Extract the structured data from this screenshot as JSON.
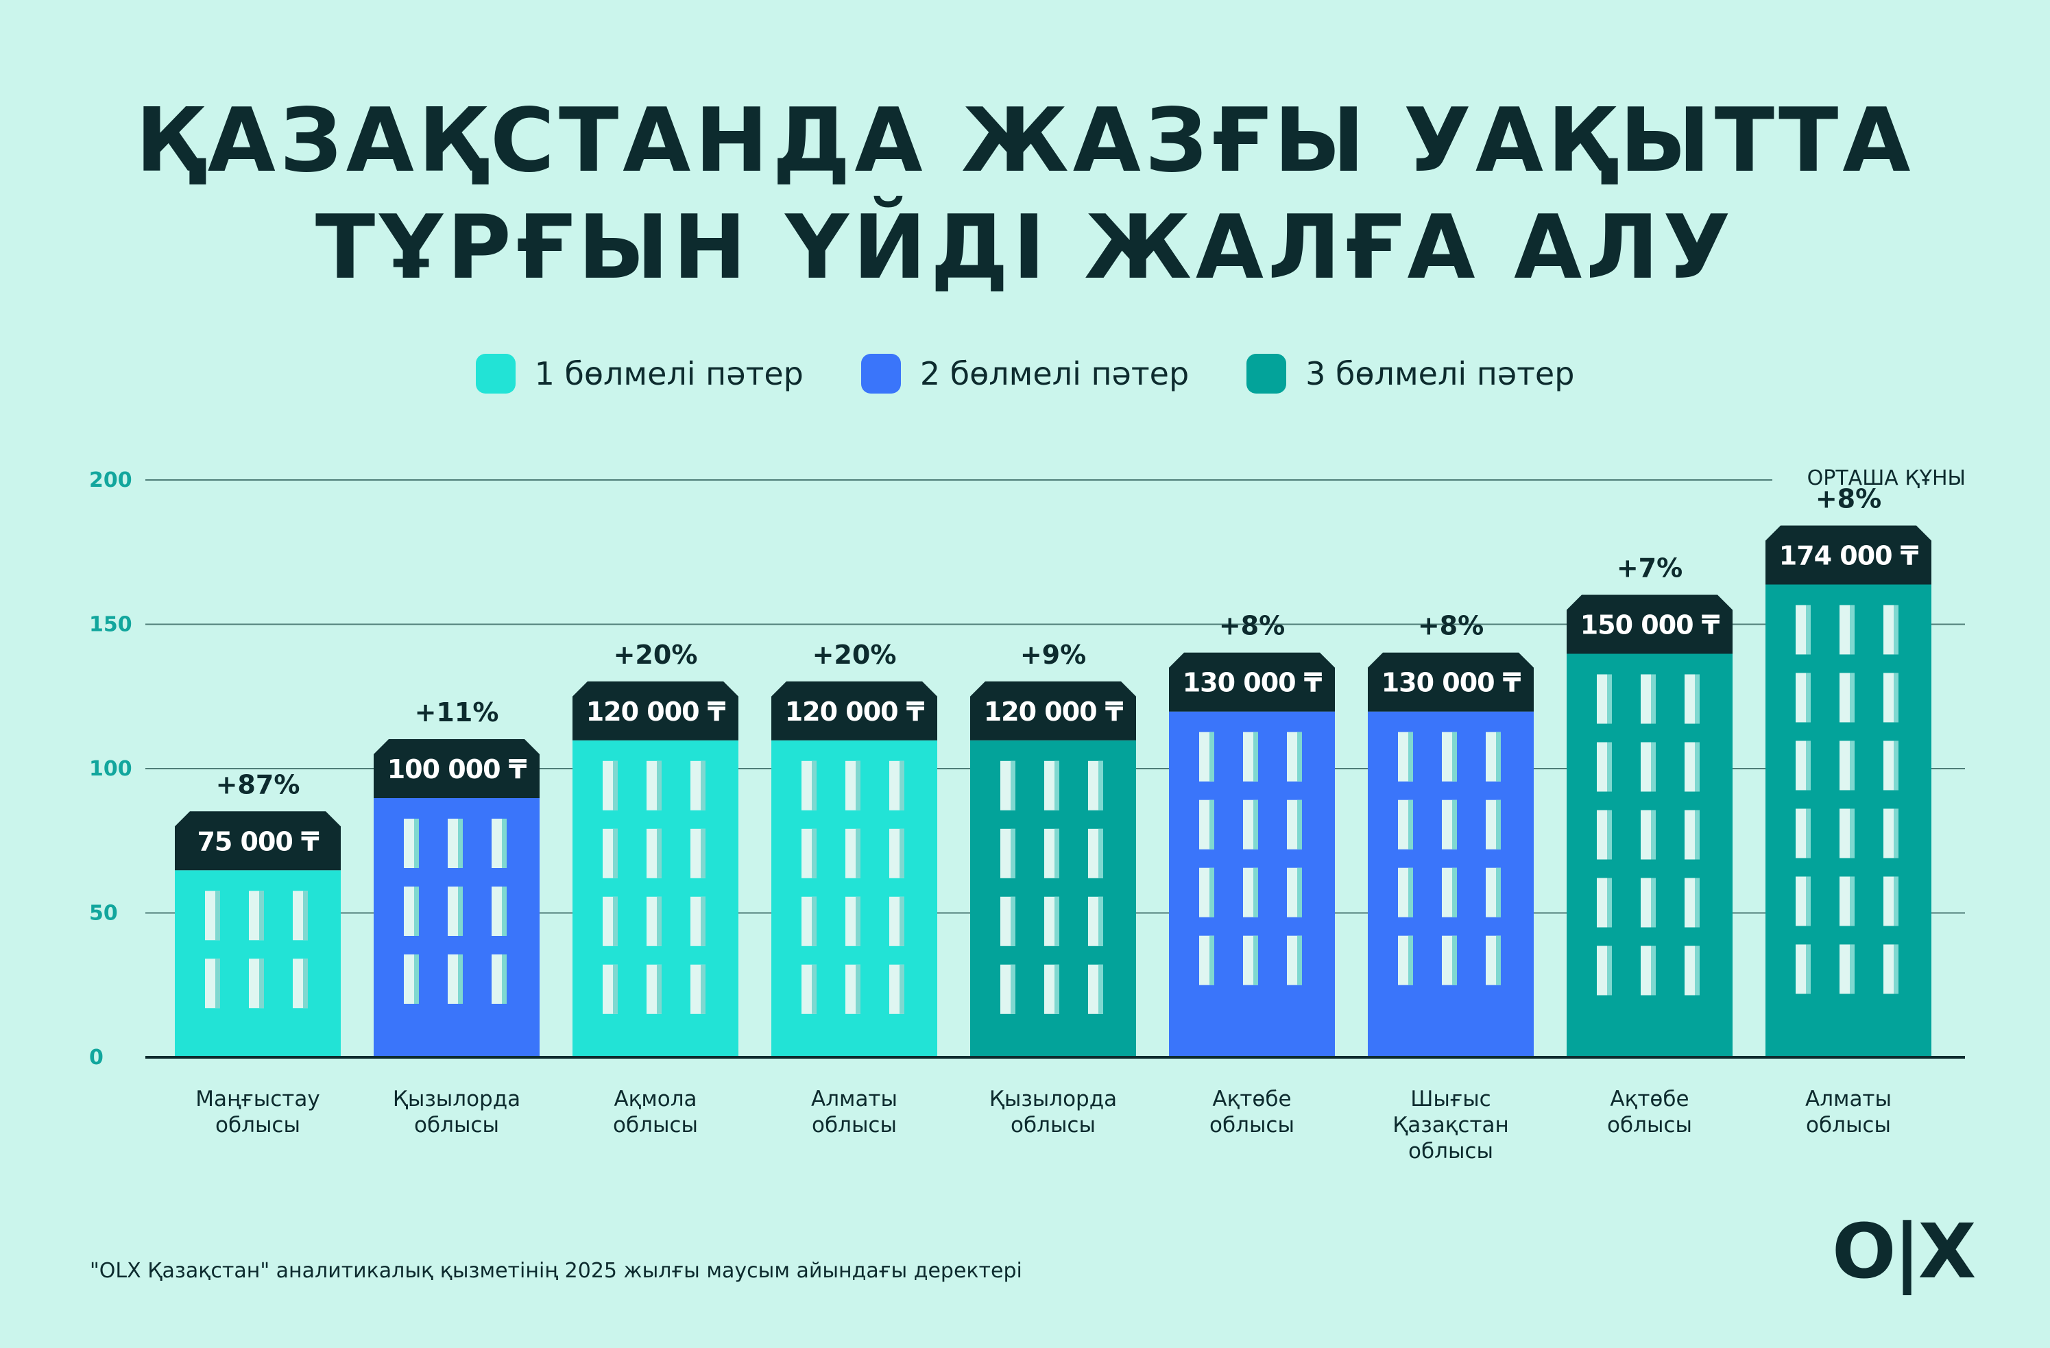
{
  "title": {
    "line1": "ҚАЗАҚСТАНДА ЖАЗҒЫ УАҚЫТТА",
    "line2": "ТҰРҒЫН ҮЙДІ ЖАЛҒА АЛУ"
  },
  "legend": [
    {
      "label": "1 бөлмелі пәтер",
      "color": "#22e3d6"
    },
    {
      "label": "2 бөлмелі пәтер",
      "color": "#3a75fa"
    },
    {
      "label": "3 бөлмелі пәтер",
      "color": "#03a39a"
    }
  ],
  "axis_unit": "ОРТАША ҚҰНЫ",
  "footnote": "\"OLX Қазақстан\" аналитикалық қызметінің 2025 жылғы маусым айындағы деректері",
  "logo": "O|X",
  "chart_data": {
    "type": "bar",
    "ylim": [
      0,
      200
    ],
    "yticks": [
      0,
      50,
      100,
      150,
      200
    ],
    "grid": true,
    "legend_position": "top-center",
    "categories": [
      [
        "Маңғыстау",
        "облысы"
      ],
      [
        "Қызылорда",
        "облысы"
      ],
      [
        "Ақмола",
        "облысы"
      ],
      [
        "Алматы",
        "облысы"
      ],
      [
        "Қызылорда",
        "облысы"
      ],
      [
        "Ақтөбе",
        "облысы"
      ],
      [
        "Шығыс",
        "Қазақстан",
        "облысы"
      ],
      [
        "Ақтөбе",
        "облысы"
      ],
      [
        "Алматы",
        "облысы"
      ]
    ],
    "bars": [
      {
        "value": 75,
        "price_label": "75 000 ₸",
        "change": "+87%",
        "rooms": 1,
        "color": "#22e3d6"
      },
      {
        "value": 100,
        "price_label": "100 000 ₸",
        "change": "+11%",
        "rooms": 2,
        "color": "#3a75fa"
      },
      {
        "value": 120,
        "price_label": "120 000 ₸",
        "change": "+20%",
        "rooms": 1,
        "color": "#22e3d6"
      },
      {
        "value": 120,
        "price_label": "120 000 ₸",
        "change": "+20%",
        "rooms": 1,
        "color": "#22e3d6"
      },
      {
        "value": 120,
        "price_label": "120 000 ₸",
        "change": "+9%",
        "rooms": 3,
        "color": "#03a39a"
      },
      {
        "value": 130,
        "price_label": "130 000 ₸",
        "change": "+8%",
        "rooms": 2,
        "color": "#3a75fa"
      },
      {
        "value": 130,
        "price_label": "130 000 ₸",
        "change": "+8%",
        "rooms": 2,
        "color": "#3a75fa"
      },
      {
        "value": 150,
        "price_label": "150 000 ₸",
        "change": "+7%",
        "rooms": 3,
        "color": "#03a39a"
      },
      {
        "value": 174,
        "price_label": "174 000 ₸",
        "change": "+8%",
        "rooms": 3,
        "color": "#03a39a"
      }
    ],
    "colors": {
      "roof": "#0d2b2e",
      "window": "#dff6f1",
      "window_shade": "#7fd8d0",
      "grid": "#4f7d78",
      "axis": "#0d2b2e",
      "tick_label": "#12a69d"
    }
  }
}
